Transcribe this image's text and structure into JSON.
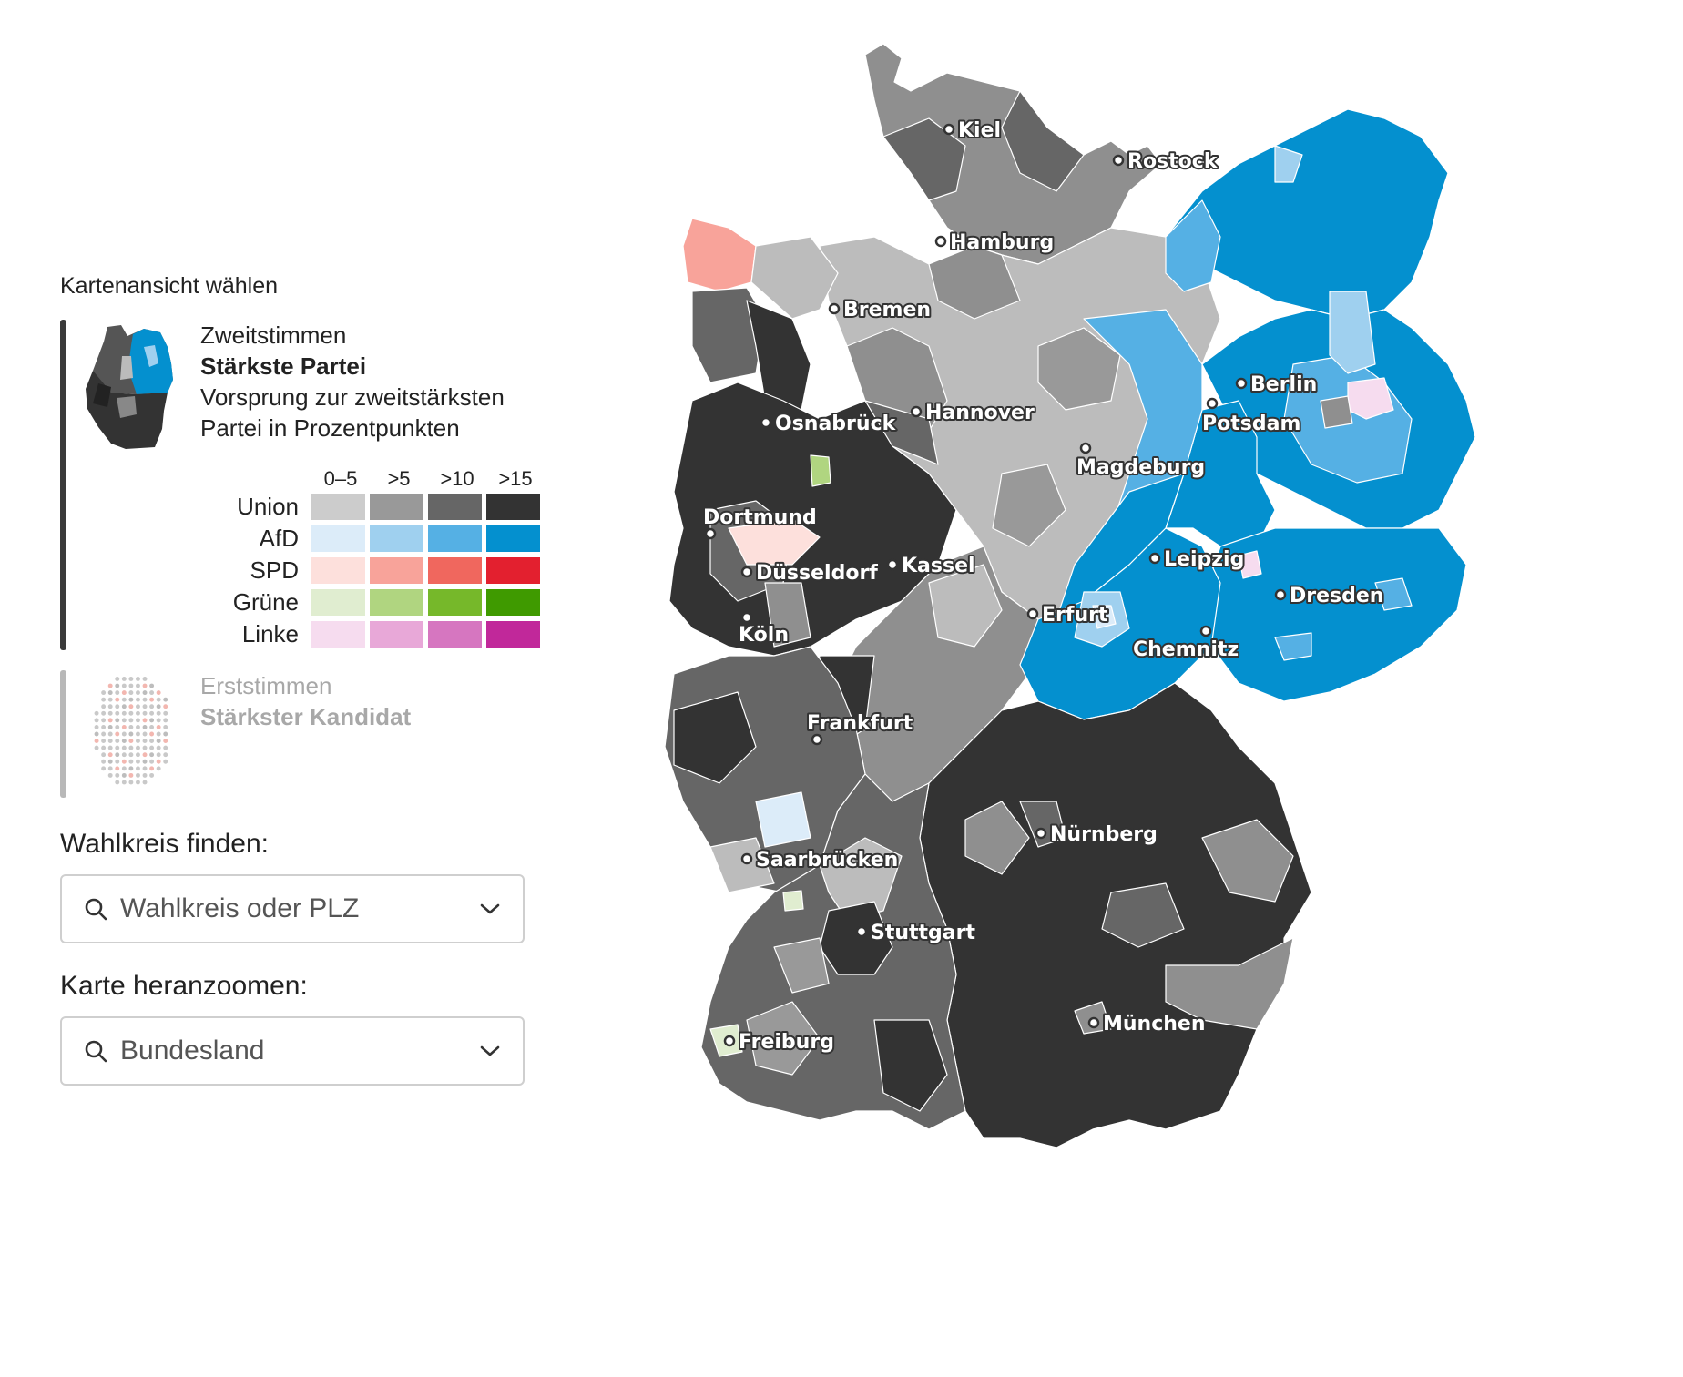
{
  "sidebar": {
    "title": "Kartenansicht wählen",
    "option1": {
      "line1": "Zweitstimmen",
      "line2": "Stärkste Partei",
      "line3": "Vorsprung zur zweitstärksten",
      "line4": "Partei in Prozentpunkten"
    },
    "option2": {
      "line1": "Erststimmen",
      "line2": "Stärkster Kandidat"
    }
  },
  "legend": {
    "columns": [
      "0–5",
      ">5",
      ">10",
      ">15"
    ],
    "rows": [
      {
        "party": "Union",
        "colors": [
          "#cccccc",
          "#999999",
          "#666666",
          "#333333"
        ]
      },
      {
        "party": "AfD",
        "colors": [
          "#dcecf9",
          "#9fd0ef",
          "#55b0e4",
          "#0490cf"
        ]
      },
      {
        "party": "SPD",
        "colors": [
          "#fde0dc",
          "#f8a39a",
          "#f0675e",
          "#e3202f"
        ]
      },
      {
        "party": "Grüne",
        "colors": [
          "#e0edd0",
          "#b0d580",
          "#76b82a",
          "#3f9a00"
        ]
      },
      {
        "party": "Linke",
        "colors": [
          "#f6dcef",
          "#e8a8d8",
          "#d676c0",
          "#c1289a"
        ]
      }
    ]
  },
  "search": {
    "label": "Wahlkreis finden:",
    "placeholder": "Wahlkreis oder PLZ"
  },
  "zoom": {
    "label": "Karte heranzoomen:",
    "placeholder": "Bundesland"
  },
  "map": {
    "cities": [
      {
        "name": "Kiel"
      },
      {
        "name": "Rostock"
      },
      {
        "name": "Hamburg"
      },
      {
        "name": "Bremen"
      },
      {
        "name": "Berlin"
      },
      {
        "name": "Potsdam"
      },
      {
        "name": "Osnabrück"
      },
      {
        "name": "Hannover"
      },
      {
        "name": "Magdeburg"
      },
      {
        "name": "Dortmund"
      },
      {
        "name": "Leipzig"
      },
      {
        "name": "Kassel"
      },
      {
        "name": "Düsseldorf"
      },
      {
        "name": "Dresden"
      },
      {
        "name": "Erfurt"
      },
      {
        "name": "Köln"
      },
      {
        "name": "Chemnitz"
      },
      {
        "name": "Frankfurt"
      },
      {
        "name": "Nürnberg"
      },
      {
        "name": "Saarbrücken"
      },
      {
        "name": "Stuttgart"
      },
      {
        "name": "München"
      },
      {
        "name": "Freiburg"
      }
    ]
  }
}
